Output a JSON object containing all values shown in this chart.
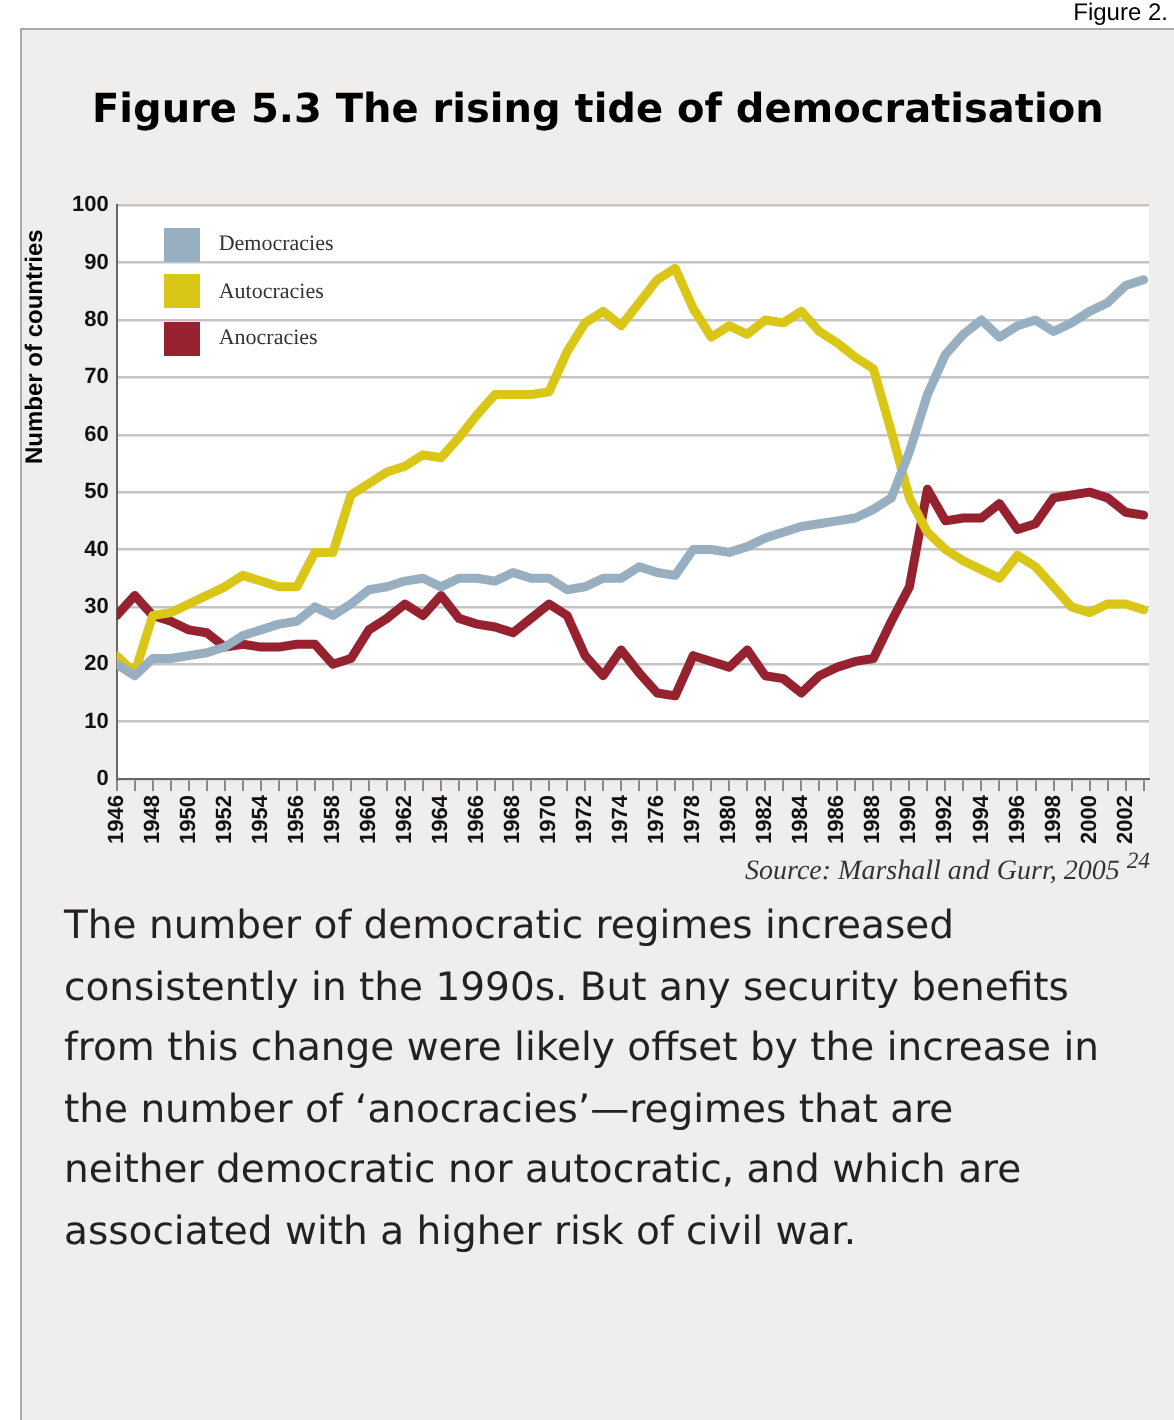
{
  "chart_data": {
    "type": "line",
    "title": "Figure 5.3 The rising tide of democratisation",
    "ylabel": "Number of countries",
    "x": [
      1946,
      1947,
      1948,
      1949,
      1950,
      1951,
      1952,
      1953,
      1954,
      1955,
      1956,
      1957,
      1958,
      1959,
      1960,
      1961,
      1962,
      1963,
      1964,
      1965,
      1966,
      1967,
      1968,
      1969,
      1970,
      1971,
      1972,
      1973,
      1974,
      1975,
      1976,
      1977,
      1978,
      1979,
      1980,
      1981,
      1982,
      1983,
      1984,
      1985,
      1986,
      1987,
      1988,
      1989,
      1990,
      1991,
      1992,
      1993,
      1994,
      1995,
      1996,
      1997,
      1998,
      1999,
      2000,
      2001,
      2002,
      2003
    ],
    "series": [
      {
        "name": "Democracies",
        "color": "#98afc2",
        "values": [
          20,
          18,
          21,
          21,
          21.5,
          22,
          23,
          25,
          26,
          27,
          27.5,
          30,
          28.5,
          30.5,
          33,
          33.5,
          34.5,
          35,
          33.5,
          35,
          35,
          34.5,
          36,
          35,
          35,
          33,
          33.5,
          35,
          35,
          37,
          36,
          35.5,
          40,
          40,
          39.5,
          40.5,
          42,
          43,
          44,
          44.5,
          45,
          45.5,
          47,
          49,
          57,
          67,
          74,
          77.5,
          80,
          77,
          79,
          80,
          78,
          79.5,
          81.5,
          83,
          86,
          87
        ]
      },
      {
        "name": "Autocracies",
        "color": "#dac617",
        "values": [
          21.5,
          18.5,
          28.5,
          29,
          30.5,
          32,
          33.5,
          35.5,
          34.5,
          33.5,
          33.5,
          39.5,
          39.5,
          49.5,
          51.5,
          53.5,
          54.5,
          56.5,
          56,
          59.5,
          63.5,
          67,
          67,
          67,
          67.5,
          74.5,
          79.5,
          81.5,
          79,
          83,
          87,
          89,
          82,
          77,
          79,
          77.5,
          80,
          79.5,
          81.5,
          78,
          76,
          73.5,
          71.5,
          60.5,
          49,
          43,
          40,
          38,
          36.5,
          35,
          39,
          37,
          33.5,
          30,
          29,
          30.5,
          30.5,
          29.5
        ]
      },
      {
        "name": "Anocracies",
        "color": "#962230",
        "values": [
          28.5,
          32,
          28.5,
          27.5,
          26,
          25.5,
          23,
          23.5,
          23,
          23,
          23.5,
          23.5,
          20,
          21,
          26,
          28,
          30.5,
          28.5,
          32,
          28,
          27,
          26.5,
          25.5,
          28,
          30.5,
          28.5,
          21.5,
          18,
          22.5,
          18.5,
          15,
          14.5,
          21.5,
          20.5,
          19.5,
          22.5,
          18,
          17.5,
          15,
          18,
          19.5,
          20.5,
          21,
          27.5,
          33.5,
          50.5,
          45,
          45.5,
          45.5,
          48,
          43.5,
          44.5,
          49,
          49.5,
          50,
          49,
          46.5,
          46
        ]
      }
    ],
    "xlim": [
      1946,
      2003.3
    ],
    "xticks": [
      {
        "value": 1946,
        "label": "1946"
      },
      {
        "value": 1947,
        "label": null
      },
      {
        "value": 1948,
        "label": "1948"
      },
      {
        "value": 1949,
        "label": null
      },
      {
        "value": 1950,
        "label": "1950"
      },
      {
        "value": 1951,
        "label": null
      },
      {
        "value": 1952,
        "label": "1952"
      },
      {
        "value": 1953,
        "label": null
      },
      {
        "value": 1954,
        "label": "1954"
      },
      {
        "value": 1955,
        "label": null
      },
      {
        "value": 1956,
        "label": "1956"
      },
      {
        "value": 1957,
        "label": null
      },
      {
        "value": 1958,
        "label": "1958"
      },
      {
        "value": 1959,
        "label": null
      },
      {
        "value": 1960,
        "label": "1960"
      },
      {
        "value": 1961,
        "label": null
      },
      {
        "value": 1962,
        "label": "1962"
      },
      {
        "value": 1963,
        "label": null
      },
      {
        "value": 1964,
        "label": "1964"
      },
      {
        "value": 1965,
        "label": null
      },
      {
        "value": 1966,
        "label": "1966"
      },
      {
        "value": 1967,
        "label": null
      },
      {
        "value": 1968,
        "label": "1968"
      },
      {
        "value": 1969,
        "label": null
      },
      {
        "value": 1970,
        "label": "1970"
      },
      {
        "value": 1971,
        "label": null
      },
      {
        "value": 1972,
        "label": "1972"
      },
      {
        "value": 1973,
        "label": null
      },
      {
        "value": 1974,
        "label": "1974"
      },
      {
        "value": 1975,
        "label": null
      },
      {
        "value": 1976,
        "label": "1976"
      },
      {
        "value": 1977,
        "label": null
      },
      {
        "value": 1978,
        "label": "1978"
      },
      {
        "value": 1979,
        "label": null
      },
      {
        "value": 1980,
        "label": "1980"
      },
      {
        "value": 1981,
        "label": null
      },
      {
        "value": 1982,
        "label": "1982"
      },
      {
        "value": 1983,
        "label": null
      },
      {
        "value": 1984,
        "label": "1984"
      },
      {
        "value": 1985,
        "label": null
      },
      {
        "value": 1986,
        "label": "1986"
      },
      {
        "value": 1987,
        "label": null
      },
      {
        "value": 1988,
        "label": "1988"
      },
      {
        "value": 1989,
        "label": null
      },
      {
        "value": 1990,
        "label": "1990"
      },
      {
        "value": 1991,
        "label": null
      },
      {
        "value": 1992,
        "label": "1992"
      },
      {
        "value": 1993,
        "label": null
      },
      {
        "value": 1994,
        "label": "1994"
      },
      {
        "value": 1995,
        "label": null
      },
      {
        "value": 1996,
        "label": "1996"
      },
      {
        "value": 1997,
        "label": null
      },
      {
        "value": 1998,
        "label": "1998"
      },
      {
        "value": 1999,
        "label": null
      },
      {
        "value": 2000,
        "label": "2000"
      },
      {
        "value": 2001,
        "label": null
      },
      {
        "value": 2002,
        "label": "2002"
      },
      {
        "value": 2003,
        "label": null
      }
    ],
    "ylim": [
      0,
      100
    ],
    "yticks": [
      0,
      10,
      20,
      30,
      40,
      50,
      60,
      70,
      80,
      90,
      100
    ],
    "grid": "y",
    "legend": "top left",
    "marker": "none",
    "line_style": "solid",
    "annotations": [
      "Figure 2.",
      "Source: Marshall and Gurr, 2005 $^{24}$",
      "The number of democratic regimes increased consistently in the 1990s. But any security benefits from this change were likely offset by the increase in the number of ‘anocracies’—regimes that are neither democratic nor autocratic, and which are associated with a higher risk of civil war."
    ]
  }
}
